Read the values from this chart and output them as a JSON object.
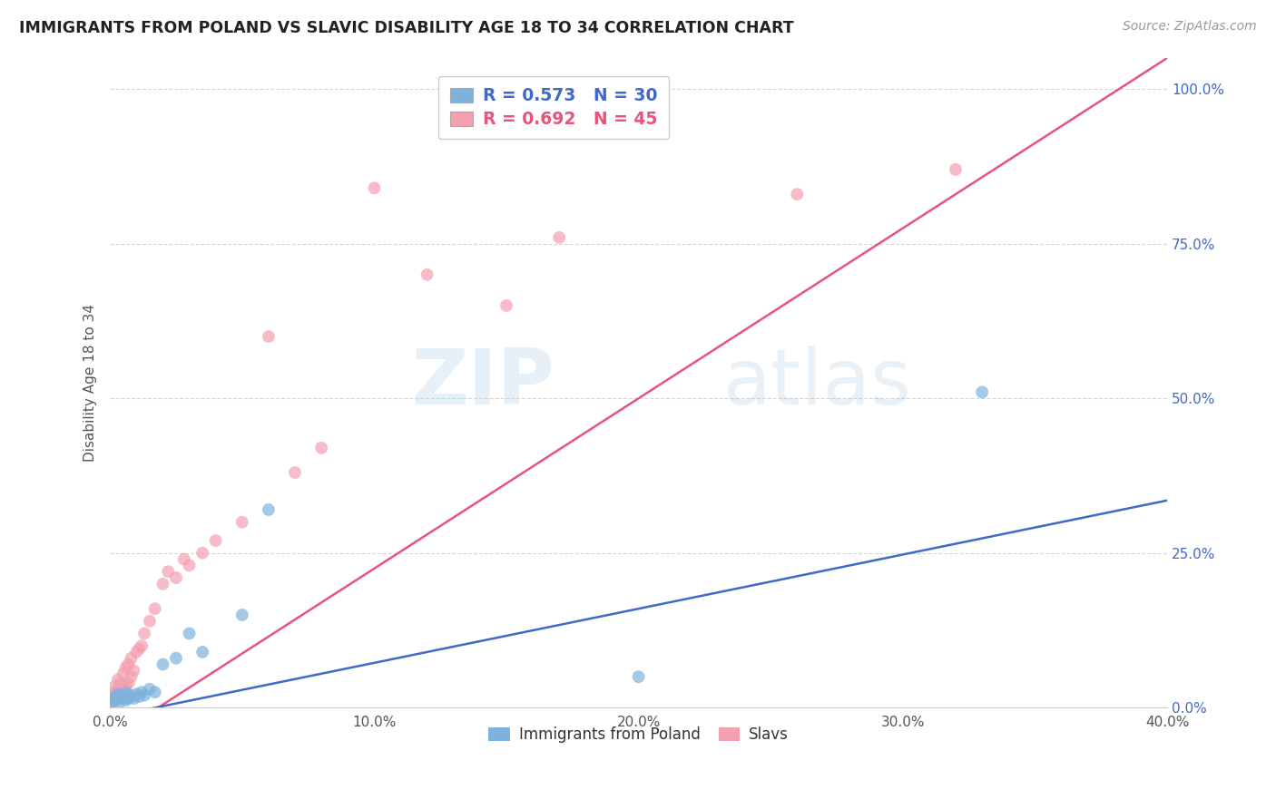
{
  "title": "IMMIGRANTS FROM POLAND VS SLAVIC DISABILITY AGE 18 TO 34 CORRELATION CHART",
  "source": "Source: ZipAtlas.com",
  "ylabel": "Disability Age 18 to 34",
  "xlim": [
    0.0,
    0.4
  ],
  "ylim": [
    0.0,
    1.05
  ],
  "xticks": [
    0.0,
    0.1,
    0.2,
    0.3,
    0.4
  ],
  "yticks": [
    0.0,
    0.25,
    0.5,
    0.75,
    1.0
  ],
  "xtick_labels": [
    "0.0%",
    "10.0%",
    "20.0%",
    "30.0%",
    "40.0%"
  ],
  "ytick_labels": [
    "0.0%",
    "25.0%",
    "50.0%",
    "75.0%",
    "100.0%"
  ],
  "legend_label1": "Immigrants from Poland",
  "legend_label2": "Slavs",
  "R1": "0.573",
  "N1": "30",
  "R2": "0.692",
  "N2": "45",
  "color_blue": "#7EB2DD",
  "color_pink": "#F4A0B0",
  "color_blue_line": "#4169C8",
  "color_pink_line": "#E8547A",
  "watermark_zip": "ZIP",
  "watermark_atlas": "atlas",
  "background_color": "#ffffff",
  "poland_x": [
    0.001,
    0.001,
    0.002,
    0.002,
    0.003,
    0.003,
    0.004,
    0.004,
    0.005,
    0.005,
    0.006,
    0.006,
    0.007,
    0.007,
    0.008,
    0.009,
    0.01,
    0.011,
    0.012,
    0.013,
    0.015,
    0.017,
    0.02,
    0.025,
    0.03,
    0.035,
    0.05,
    0.06,
    0.2,
    0.33
  ],
  "poland_y": [
    0.01,
    0.015,
    0.012,
    0.018,
    0.015,
    0.022,
    0.01,
    0.02,
    0.015,
    0.018,
    0.012,
    0.025,
    0.018,
    0.015,
    0.02,
    0.015,
    0.022,
    0.018,
    0.025,
    0.02,
    0.03,
    0.025,
    0.07,
    0.08,
    0.12,
    0.09,
    0.15,
    0.32,
    0.05,
    0.51
  ],
  "slavs_x": [
    0.001,
    0.001,
    0.001,
    0.002,
    0.002,
    0.002,
    0.003,
    0.003,
    0.003,
    0.004,
    0.004,
    0.004,
    0.005,
    0.005,
    0.005,
    0.006,
    0.006,
    0.007,
    0.007,
    0.008,
    0.008,
    0.009,
    0.01,
    0.011,
    0.012,
    0.013,
    0.015,
    0.017,
    0.02,
    0.022,
    0.025,
    0.028,
    0.03,
    0.035,
    0.04,
    0.05,
    0.06,
    0.07,
    0.08,
    0.1,
    0.12,
    0.15,
    0.17,
    0.26,
    0.32
  ],
  "slavs_y": [
    0.008,
    0.012,
    0.02,
    0.015,
    0.025,
    0.035,
    0.02,
    0.03,
    0.045,
    0.018,
    0.028,
    0.04,
    0.022,
    0.038,
    0.055,
    0.035,
    0.065,
    0.04,
    0.07,
    0.05,
    0.08,
    0.06,
    0.09,
    0.095,
    0.1,
    0.12,
    0.14,
    0.16,
    0.2,
    0.22,
    0.21,
    0.24,
    0.23,
    0.25,
    0.27,
    0.3,
    0.6,
    0.38,
    0.42,
    0.84,
    0.7,
    0.65,
    0.76,
    0.83,
    0.87
  ]
}
